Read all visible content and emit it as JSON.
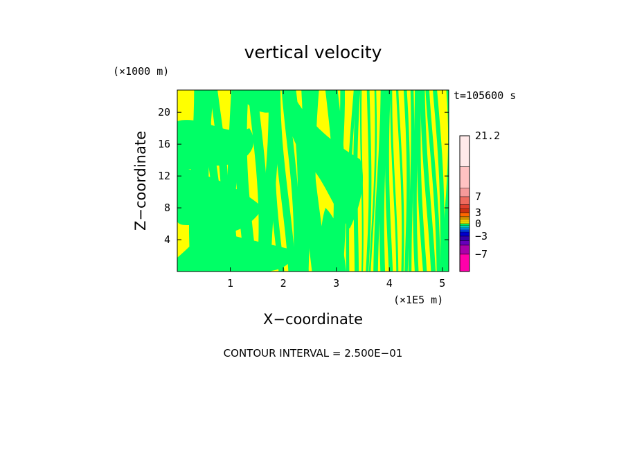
{
  "chart_data": {
    "type": "heatmap",
    "title": "vertical velocity",
    "xlabel": "X−coordinate",
    "ylabel": "Z−coordinate",
    "x_unit": "(×1E5 m)",
    "y_unit": "(×1000 m)",
    "time_label": "t=105600 s",
    "xlim": [
      0,
      5.12
    ],
    "ylim": [
      0,
      22.8
    ],
    "x_ticks": [
      "1",
      "2",
      "3",
      "4",
      "5"
    ],
    "x_tick_values": [
      1,
      2,
      3,
      4,
      5
    ],
    "y_ticks": [
      "4",
      "8",
      "12",
      "16",
      "20"
    ],
    "y_tick_values": [
      4,
      8,
      12,
      16,
      20
    ],
    "field_colors": {
      "positive": "#ffff00",
      "negative": "#00ff66"
    },
    "colorbar": {
      "labels": [
        "21.2",
        "7",
        "3",
        "0",
        "−3",
        "−7"
      ],
      "label_values": [
        21.2,
        7,
        3,
        0,
        -3,
        -7
      ],
      "min": -10,
      "max": 21.2,
      "bands": [
        {
          "from": 14,
          "to": 21.2,
          "color": "#ffe9e9"
        },
        {
          "from": 9,
          "to": 14,
          "color": "#ffc2c2"
        },
        {
          "from": 7,
          "to": 9,
          "color": "#f59a9a"
        },
        {
          "from": 5,
          "to": 7,
          "color": "#ee6a5e"
        },
        {
          "from": 4,
          "to": 5,
          "color": "#e0402e"
        },
        {
          "from": 3,
          "to": 4,
          "color": "#cc3010"
        },
        {
          "from": 2,
          "to": 3,
          "color": "#ff6600"
        },
        {
          "from": 1.5,
          "to": 2,
          "color": "#ff9900"
        },
        {
          "from": 1,
          "to": 1.5,
          "color": "#ffbb00"
        },
        {
          "from": 0.5,
          "to": 1,
          "color": "#ffdd00"
        },
        {
          "from": 0,
          "to": 0.5,
          "color": "#ffff00"
        },
        {
          "from": -0.5,
          "to": 0,
          "color": "#00ff66"
        },
        {
          "from": -1,
          "to": -0.5,
          "color": "#00dddd"
        },
        {
          "from": -1.5,
          "to": -1,
          "color": "#0099ff"
        },
        {
          "from": -2,
          "to": -1.5,
          "color": "#0044ff"
        },
        {
          "from": -3,
          "to": -2,
          "color": "#0000cc"
        },
        {
          "from": -4,
          "to": -3,
          "color": "#3300aa"
        },
        {
          "from": -5,
          "to": -4,
          "color": "#6600bb"
        },
        {
          "from": -7,
          "to": -5,
          "color": "#aa00aa"
        },
        {
          "from": -10,
          "to": -7,
          "color": "#ff00aa"
        }
      ]
    },
    "contour_interval": "CONTOUR INTERVAL = 2.500E−01"
  }
}
